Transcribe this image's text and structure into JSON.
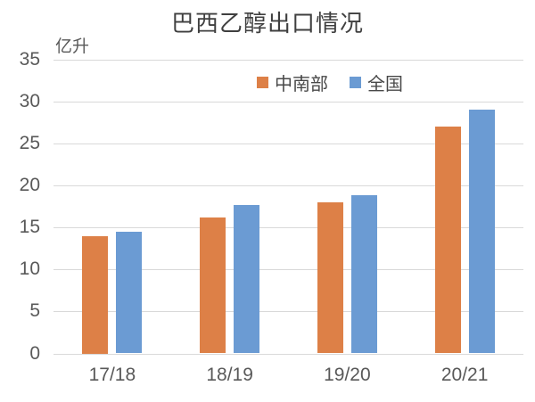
{
  "chart_data": {
    "type": "bar",
    "title": "巴西乙醇出口情况",
    "unit_label": "亿升",
    "categories": [
      "17/18",
      "18/19",
      "19/20",
      "20/21"
    ],
    "series": [
      {
        "name": "中南部",
        "color": "#DD8047",
        "values": [
          14.0,
          16.2,
          18.0,
          27.0
        ]
      },
      {
        "name": "全国",
        "color": "#6B9BD3",
        "values": [
          14.5,
          17.7,
          18.8,
          29.0
        ]
      }
    ],
    "ylim": [
      0,
      35
    ],
    "ytick_step": 5,
    "yticks": [
      0,
      5,
      10,
      15,
      20,
      25,
      30,
      35
    ],
    "grid": true,
    "legend_position": "top-center",
    "gridline_color": "#D9D9D9",
    "axis_label_color": "#595959",
    "title_color": "#3F3F3F"
  }
}
